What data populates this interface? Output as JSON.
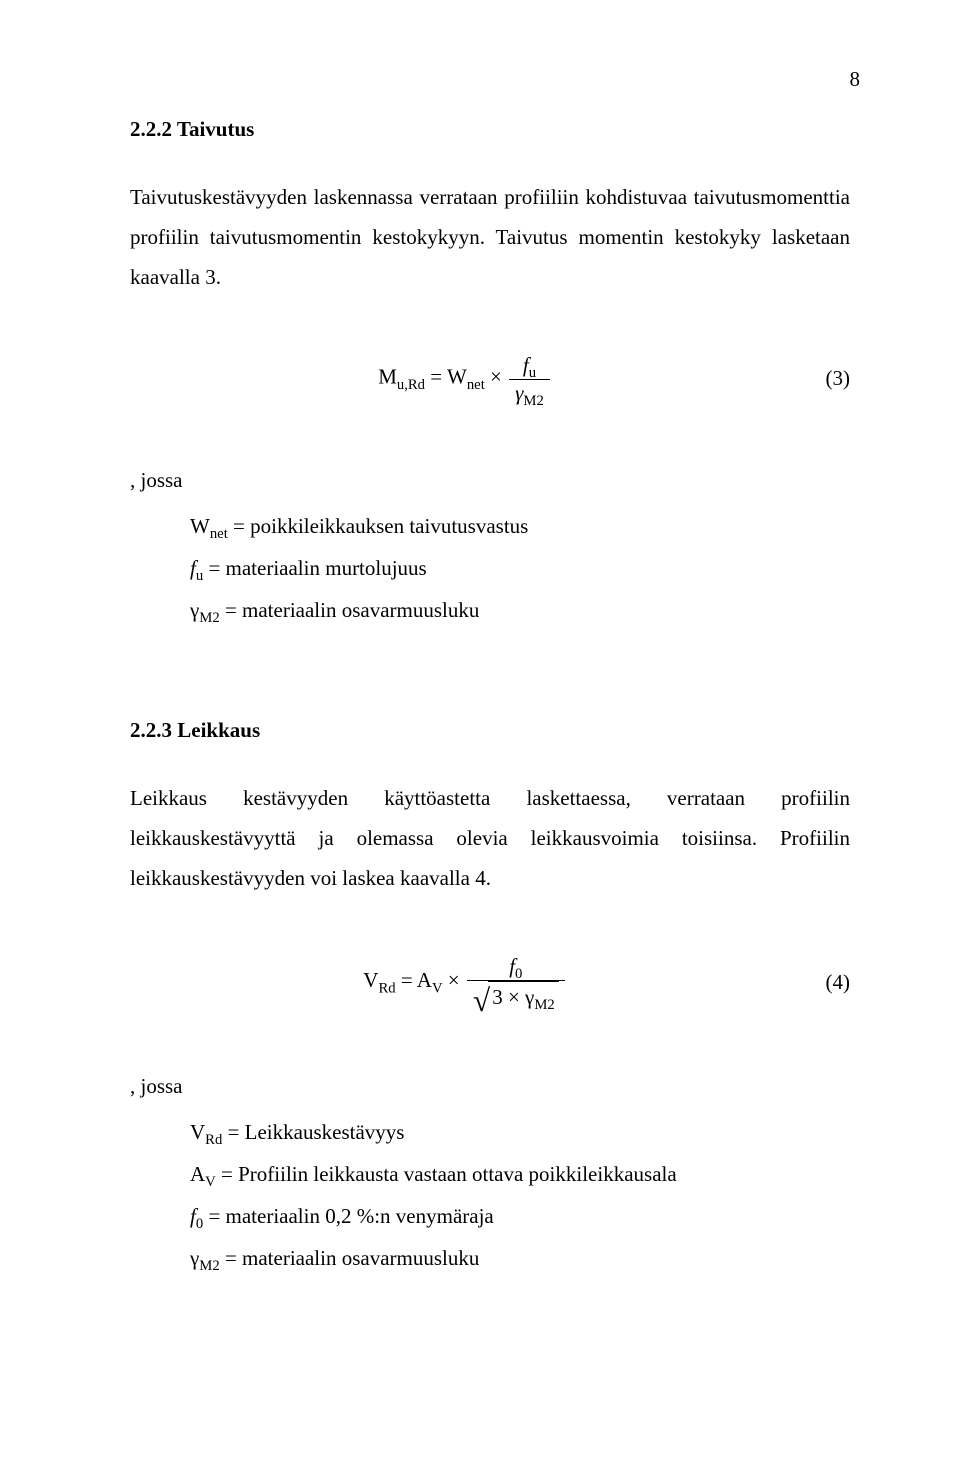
{
  "page_number": "8",
  "sec1": {
    "heading": "2.2.2 Taivutus",
    "paragraph": "Taivutuskestävyyden laskennassa verrataan profiiliin kohdistuvaa taivutusmomenttia profiilin taivutusmomentin kestokykyyn. Taivutus momentin kestokyky lasketaan kaavalla 3."
  },
  "eq3": {
    "lhs_base": "M",
    "lhs_sub": "u,Rd",
    "eq": " = ",
    "rhs1_base": "W",
    "rhs1_sub": "net",
    "times": " × ",
    "frac_num_base": "f",
    "frac_num_sub": "u",
    "frac_den_base": "γ",
    "frac_den_sub": "M2",
    "number": "(3)"
  },
  "where1": {
    "label": ", jossa",
    "line1_sym_base": "W",
    "line1_sym_sub": "net",
    "line1_text": " = poikkileikkauksen taivutusvastus",
    "line2_sym_base": "f",
    "line2_sym_sub": "u",
    "line2_text": " = materiaalin murtolujuus",
    "line3_sym_base": "γ",
    "line3_sym_sub": "M2",
    "line3_text": " = materiaalin osavarmuusluku"
  },
  "sec2": {
    "heading": "2.2.3 Leikkaus",
    "paragraph": "Leikkaus kestävyyden käyttöastetta laskettaessa, verrataan profiilin leikkauskestävyyttä ja olemassa olevia leikkausvoimia toisiinsa. Profiilin leikkauskestävyyden voi laskea kaavalla 4."
  },
  "eq4": {
    "lhs_base": "V",
    "lhs_sub": "Rd",
    "eq": " = ",
    "rhs1_base": "A",
    "rhs1_sub": "V",
    "times": " × ",
    "frac_num_base": "f",
    "frac_num_sub": "0",
    "rad_pre": "3 × ",
    "rad_g_base": "γ",
    "rad_g_sub": "M2",
    "number": "(4)"
  },
  "where2": {
    "label": ", jossa",
    "line1_sym_base": "V",
    "line1_sym_sub": "Rd",
    "line1_text": " = Leikkauskestävyys",
    "line2_sym_base": "A",
    "line2_sym_sub": "V",
    "line2_text": " = Profiilin leikkausta vastaan ottava poikkileikkausala",
    "line3_sym_base": "f",
    "line3_sym_sub": "0",
    "line3_text": " = materiaalin 0,2 %:n venymäraja",
    "line4_sym_base": "γ",
    "line4_sym_sub": "M2",
    "line4_text": " = materiaalin osavarmuusluku"
  }
}
